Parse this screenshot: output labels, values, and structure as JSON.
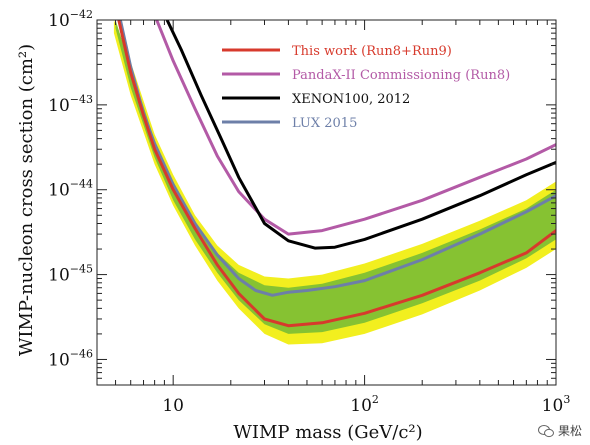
{
  "chart_data": {
    "type": "line",
    "xscale": "log",
    "yscale": "log",
    "xlim": [
      4,
      1000
    ],
    "ylim": [
      5e-47,
      1e-42
    ],
    "xlabel": "WIMP mass (GeV/c²)",
    "ylabel": "WIMP-nucleon cross section (cm²)",
    "x_ticks": [
      {
        "value": 10,
        "base": "10",
        "exp": ""
      },
      {
        "value": 100,
        "base": "10",
        "exp": "2"
      },
      {
        "value": 1000,
        "base": "10",
        "exp": "3"
      }
    ],
    "y_ticks": [
      {
        "value": 1e-42,
        "base": "10",
        "exp": "−42"
      },
      {
        "value": 1e-43,
        "base": "10",
        "exp": "−43"
      },
      {
        "value": 1e-44,
        "base": "10",
        "exp": "−44"
      },
      {
        "value": 1e-45,
        "base": "10",
        "exp": "−45"
      },
      {
        "value": 1e-46,
        "base": "10",
        "exp": "−46"
      }
    ],
    "legend_position": "top-right",
    "series": [
      {
        "name": "This work (Run8+Run9)",
        "color": "#d73a2c",
        "x": [
          5.2,
          6,
          7,
          8,
          10,
          13,
          17,
          22,
          30,
          40,
          60,
          100,
          200,
          400,
          700,
          1000
        ],
        "y": [
          1e-42,
          2.4e-43,
          7.5e-44,
          3e-44,
          1e-44,
          3.5e-45,
          1.3e-45,
          6e-46,
          3e-46,
          2.5e-46,
          2.7e-46,
          3.5e-46,
          5.7e-46,
          1.05e-45,
          1.8e-45,
          3.3e-45
        ]
      },
      {
        "name": "PandaX-II Commissioning (Run8)",
        "color": "#b35aa6",
        "x": [
          8.2,
          10,
          13,
          17,
          22,
          30,
          40,
          60,
          100,
          200,
          400,
          700,
          1000
        ],
        "y": [
          1e-42,
          3.3e-43,
          9e-44,
          2.5e-44,
          9.5e-45,
          4.5e-45,
          3e-45,
          3.3e-45,
          4.5e-45,
          7.5e-45,
          1.4e-44,
          2.3e-44,
          3.4e-44
        ]
      },
      {
        "name": "XENON100, 2012",
        "color": "#000000",
        "x": [
          9.3,
          11,
          14,
          18,
          22,
          30,
          40,
          55,
          70,
          100,
          200,
          400,
          700,
          1000
        ],
        "y": [
          1e-42,
          4.5e-43,
          1.3e-43,
          3.8e-44,
          1.4e-44,
          4e-45,
          2.5e-45,
          2.05e-45,
          2.1e-45,
          2.6e-45,
          4.5e-45,
          8.5e-45,
          1.5e-44,
          2.1e-44
        ]
      },
      {
        "name": "LUX 2015",
        "color": "#6d7fa8",
        "x": [
          5.3,
          6,
          7,
          8,
          10,
          13,
          17,
          22,
          27,
          33,
          40,
          50,
          70,
          100,
          200,
          400,
          700,
          1000
        ],
        "y": [
          1e-42,
          2.8e-43,
          8e-44,
          3.5e-44,
          1.15e-44,
          4e-45,
          1.7e-45,
          9e-46,
          6.5e-46,
          5.7e-46,
          6.2e-46,
          6.5e-46,
          7.2e-46,
          8.5e-46,
          1.5e-45,
          3e-45,
          5.5e-45,
          8.5e-45
        ]
      }
    ],
    "bands": [
      {
        "type": "2sigma",
        "color": "#f2ef1f",
        "x": [
          4.9,
          6,
          8,
          10,
          13,
          17,
          22,
          30,
          40,
          60,
          100,
          200,
          400,
          700,
          1000
        ],
        "upper": [
          1e-42,
          3.2e-43,
          4.5e-44,
          1.5e-44,
          5e-45,
          2.2e-45,
          1.3e-45,
          9.5e-46,
          9e-46,
          1e-45,
          1.35e-45,
          2.3e-45,
          4.3e-45,
          7.5e-45,
          1.25e-44
        ],
        "lower": [
          7e-43,
          1.3e-43,
          2e-44,
          6.5e-45,
          2.2e-45,
          8.5e-46,
          4e-46,
          2e-46,
          1.5e-46,
          1.55e-46,
          2e-46,
          3.4e-46,
          6.5e-46,
          1.2e-45,
          2e-45
        ]
      },
      {
        "type": "1sigma",
        "color": "#86c232",
        "x": [
          5.0,
          6,
          8,
          10,
          13,
          17,
          22,
          30,
          40,
          60,
          100,
          200,
          400,
          700,
          1000
        ],
        "upper": [
          1e-42,
          2.8e-43,
          3.8e-44,
          1.25e-44,
          4.2e-45,
          1.8e-45,
          1.05e-45,
          7.5e-46,
          7e-46,
          7.8e-46,
          1.05e-45,
          1.8e-45,
          3.4e-45,
          6e-45,
          1e-44
        ],
        "lower": [
          8e-43,
          1.6e-43,
          2.4e-44,
          7.5e-45,
          2.6e-45,
          1.05e-45,
          5e-46,
          2.6e-46,
          2e-46,
          2.1e-46,
          2.7e-46,
          4.6e-46,
          8.5e-46,
          1.55e-45,
          2.6e-45
        ]
      }
    ]
  },
  "watermark": {
    "text": "果松"
  }
}
